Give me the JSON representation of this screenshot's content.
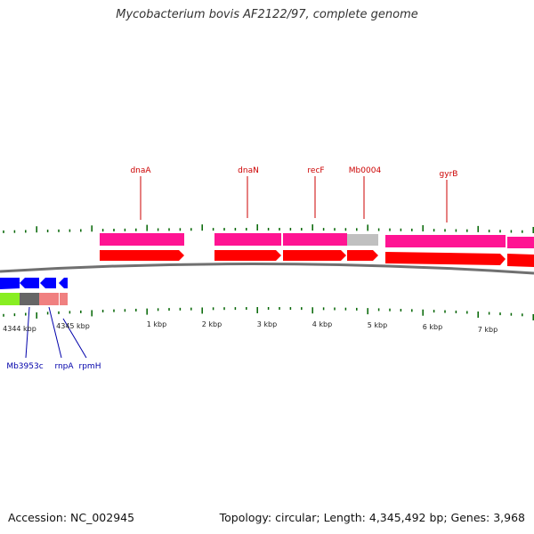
{
  "title": "Mycobacterium bovis AF2122/97, complete genome",
  "footer": {
    "accession": "Accession: NC_002945",
    "summary": "Topology: circular; Length: 4,345,492 bp; Genes: 3,968"
  },
  "colors": {
    "forward_cds": "#ff0000",
    "forward_gene": "#ff1493",
    "pseudo_gene": "#c0c0c0",
    "reverse_cds": "#0000ff",
    "reverse_gene_green": "#88ee22",
    "reverse_gene_dark": "#666666",
    "reverse_gene_pink": "#f08080",
    "label_forward": "#cc0000",
    "label_reverse": "#0000aa",
    "tick": "#006400",
    "backbone": "#707070"
  },
  "forward_labels": [
    "dnaA",
    "dnaN",
    "recF",
    "Mb0004",
    "gyrB"
  ],
  "reverse_labels": [
    "Mb3953c",
    "rnpA",
    "rpmH"
  ],
  "scale_labels": [
    "4344 kbp",
    "4345 kbp",
    "1 kbp",
    "2 kbp",
    "3 kbp",
    "4 kbp",
    "5 kbp",
    "6 kbp",
    "7 kbp"
  ]
}
